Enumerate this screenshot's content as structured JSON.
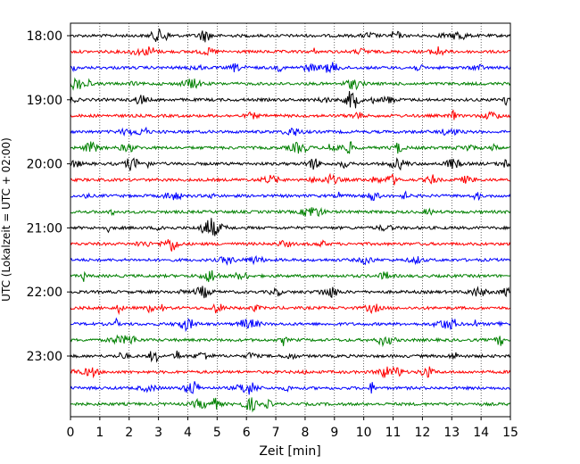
{
  "chart_data": {
    "type": "line",
    "xlabel": "Zeit  [min]",
    "ylabel": "UTC (Lokalzeit = UTC + 02:00)",
    "xlim": [
      0,
      15
    ],
    "x_ticks": [
      "0",
      "1",
      "2",
      "3",
      "4",
      "5",
      "6",
      "7",
      "8",
      "9",
      "10",
      "11",
      "12",
      "13",
      "14",
      "15"
    ],
    "y_tick_labels": [
      "18:00",
      "19:00",
      "20:00",
      "21:00",
      "22:00",
      "23:00"
    ],
    "grid": "vertical dotted",
    "trace_color_cycle": [
      "#000000",
      "#ff0000",
      "#0000ff",
      "#008000"
    ],
    "trace_start_times": [
      "18:00",
      "18:15",
      "18:30",
      "18:45",
      "19:00",
      "19:15",
      "19:30",
      "19:45",
      "20:00",
      "20:15",
      "20:30",
      "20:45",
      "21:00",
      "21:15",
      "21:30",
      "21:45",
      "22:00",
      "22:15",
      "22:30",
      "22:45",
      "23:00",
      "23:15",
      "23:30",
      "23:45"
    ],
    "trace_duration_min": 15
  }
}
